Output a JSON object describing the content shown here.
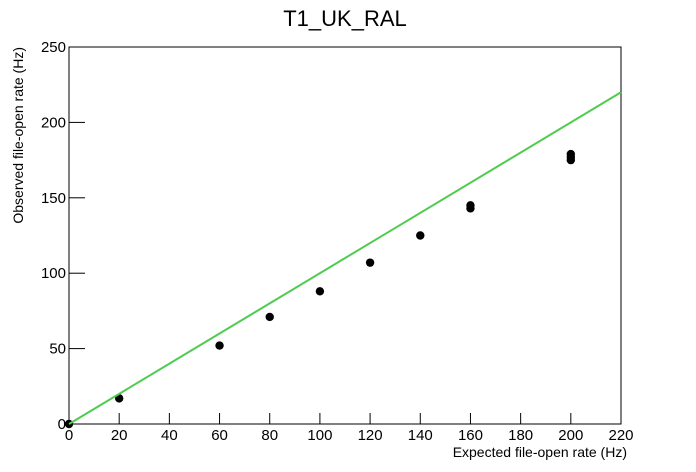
{
  "chart_data": {
    "type": "scatter",
    "title": "T1_UK_RAL",
    "x_label": "Expected file-open rate (Hz)",
    "y_label": "Observed file-open rate (Hz)",
    "xlim": [
      0,
      220
    ],
    "ylim": [
      0,
      250
    ],
    "xticks": [
      0,
      20,
      40,
      60,
      80,
      100,
      120,
      140,
      160,
      180,
      200,
      220
    ],
    "yticks": [
      0,
      50,
      100,
      150,
      200,
      250
    ],
    "series": [
      {
        "type": "scatter",
        "color": "#000000",
        "x": [
          0,
          20,
          60,
          80,
          100,
          120,
          140,
          160,
          160,
          200,
          200,
          200
        ],
        "values": [
          0,
          17,
          52,
          71,
          88,
          107,
          125,
          143,
          145,
          175,
          177,
          179
        ]
      },
      {
        "type": "line",
        "color": "#4fcc4f",
        "x": [
          0,
          220
        ],
        "values": [
          0,
          220
        ]
      }
    ]
  }
}
